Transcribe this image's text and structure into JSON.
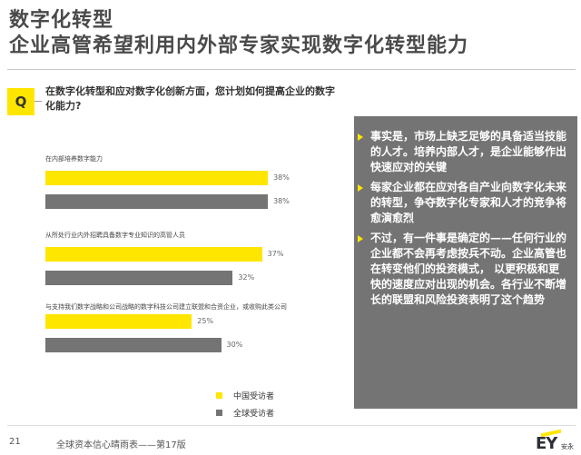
{
  "header": {
    "title": "数字化转型",
    "subtitle": "企业高管希望利用内外部专家实现数字化转型能力"
  },
  "question": {
    "badge": "Q",
    "text": "在数字化转型和应对数字化创新方面，您计划如何提高企业的数字化能力?"
  },
  "chart_data": {
    "type": "bar",
    "orientation": "horizontal",
    "categories": [
      "在内部培养数字能力",
      "从所处行业内外招聘具备数字专业知识的高管人员",
      "与支持我们数字战略和公司战略的数字科技公司建立联盟和合资企业，或收购此类公司"
    ],
    "series": [
      {
        "name": "中国受访者",
        "color": "#ffe600",
        "values": [
          38,
          37,
          25
        ],
        "labels": [
          "38%",
          "37%",
          "25%"
        ]
      },
      {
        "name": "全球受访者",
        "color": "#747474",
        "values": [
          38,
          32,
          30
        ],
        "labels": [
          "38%",
          "32%",
          "30%"
        ]
      }
    ],
    "unit": "%",
    "legend_placement": "bottom",
    "grid": false
  },
  "panel": {
    "bg_color": "#747474",
    "items": [
      "事实是，市场上缺乏足够的具备适当技能的人才。培养内部人才，是企业能够作出快速应对的关键",
      "每家企业都在应对各自产业向数字化未来的转型，争夺数字化专家和人才的竞争将愈演愈烈",
      "不过，有一件事是确定的——任何行业的企业都不会再考虑按兵不动。企业高管也在转变他们的投资模式， 以更积极和更快的速度应对出现的机会。各行业不断增长的联盟和风险投资表明了这个趋势"
    ]
  },
  "footer": {
    "page_number": "21",
    "publication": "全球资本信心晴雨表——第17版",
    "logo_text": "EY",
    "logo_cn": "安永"
  }
}
